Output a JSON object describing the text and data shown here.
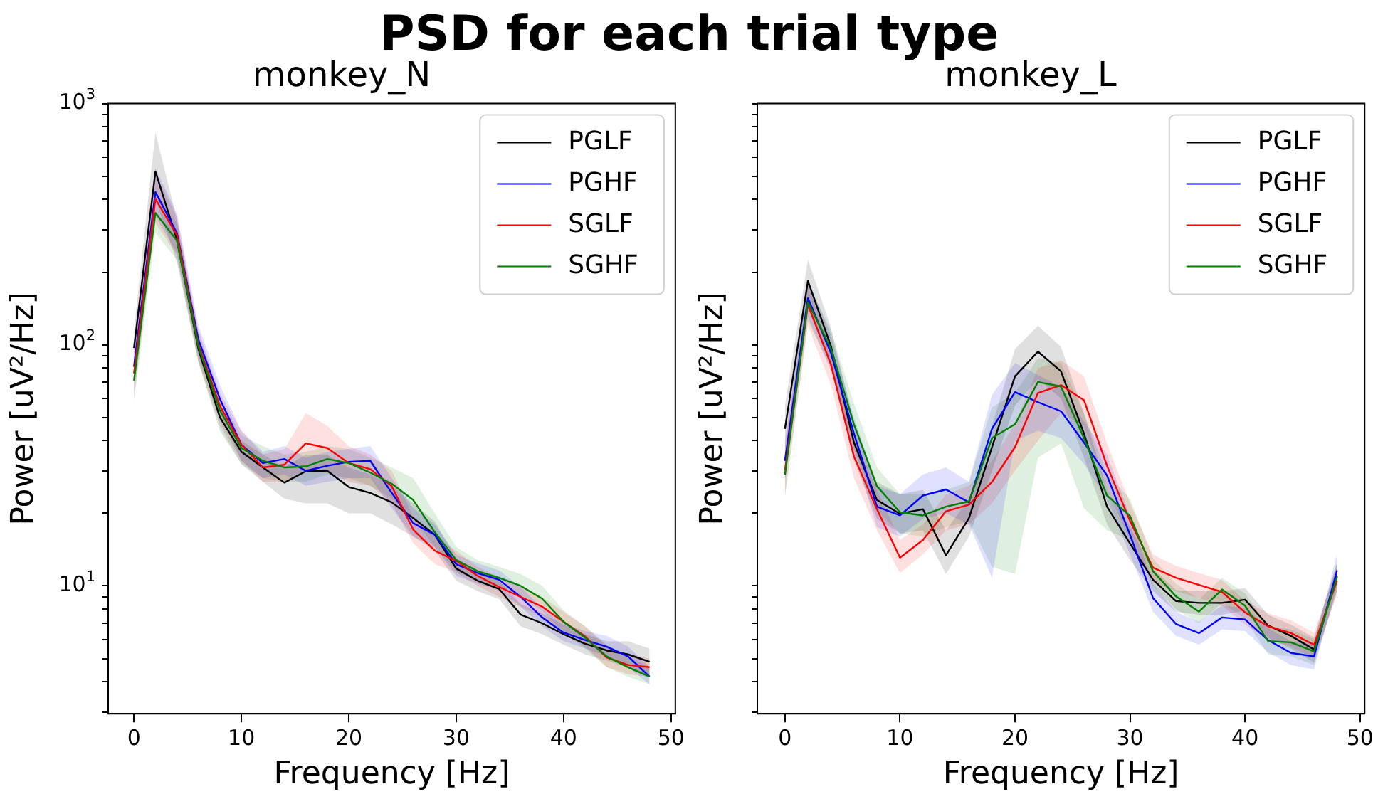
{
  "chart_data": [
    {
      "type": "line",
      "title": "monkey_N",
      "xlabel": "Frequency [Hz]",
      "ylabel": "Power [uV²/Hz]",
      "annotations": [
        "PSD for each trial type"
      ],
      "x": [
        0,
        2,
        4,
        6,
        8,
        10,
        12,
        14,
        16,
        18,
        20,
        22,
        24,
        26,
        28,
        30,
        32,
        34,
        36,
        38,
        40,
        42,
        44,
        46,
        48
      ],
      "xlim": [
        -2.4,
        50.4
      ],
      "xticks": [
        0,
        10,
        20,
        30,
        40,
        50
      ],
      "ylim": [
        2.95,
        1000
      ],
      "log": true,
      "yticks": [
        {
          "value": 3,
          "label": null
        },
        {
          "value": 4,
          "label": null
        },
        {
          "value": 5,
          "label": null
        },
        {
          "value": 6,
          "label": null
        },
        {
          "value": 7,
          "label": null
        },
        {
          "value": 8,
          "label": null
        },
        {
          "value": 9,
          "label": null
        },
        {
          "value": 10,
          "label": "10$^{1}$"
        },
        {
          "value": 20,
          "label": null
        },
        {
          "value": 30,
          "label": null
        },
        {
          "value": 40,
          "label": null
        },
        {
          "value": 50,
          "label": null
        },
        {
          "value": 60,
          "label": null
        },
        {
          "value": 70,
          "label": null
        },
        {
          "value": 80,
          "label": null
        },
        {
          "value": 90,
          "label": null
        },
        {
          "value": 100,
          "label": "10$^{2}$"
        },
        {
          "value": 200,
          "label": null
        },
        {
          "value": 300,
          "label": null
        },
        {
          "value": 400,
          "label": null
        },
        {
          "value": 500,
          "label": null
        },
        {
          "value": 600,
          "label": null
        },
        {
          "value": 700,
          "label": null
        },
        {
          "value": 800,
          "label": null
        },
        {
          "value": 900,
          "label": null
        },
        {
          "value": 1000,
          "label": "10$^{3}$"
        }
      ],
      "grid": false,
      "legend": "top right",
      "marker": "none",
      "line_style": "solid",
      "series": [
        {
          "name": "PGLF",
          "color": "#000000",
          "values": [
            97,
            523,
            272,
            96,
            50,
            36,
            31,
            26.8,
            29.9,
            30,
            25.7,
            24.3,
            22.2,
            19.1,
            16.3,
            11.8,
            10.5,
            9.7,
            7.6,
            7.0,
            6.3,
            5.75,
            5.4,
            5.2,
            4.85
          ],
          "lower": [
            80,
            400,
            220,
            85,
            44,
            32,
            27,
            23,
            22,
            22,
            20,
            20,
            18,
            16,
            14,
            10.5,
            9.5,
            8.8,
            6.8,
            6.3,
            5.7,
            5.2,
            4.9,
            4.6,
            4.2
          ],
          "upper": [
            115,
            760,
            330,
            108,
            56,
            40,
            35,
            31,
            35,
            35,
            31,
            29,
            26,
            22,
            18.5,
            13,
            11.5,
            10.5,
            8.4,
            7.7,
            6.9,
            6.3,
            5.9,
            5.9,
            5.5
          ]
        },
        {
          "name": "PGHF",
          "color": "#0000ff",
          "values": [
            81,
            430,
            290,
            105,
            59.6,
            38.5,
            32.3,
            33.6,
            30,
            31.5,
            32.7,
            33,
            24.3,
            18.2,
            16.3,
            12.3,
            11.3,
            10.6,
            9.0,
            7.4,
            6.4,
            5.96,
            5.6,
            5.1,
            4.2
          ],
          "lower": [
            62,
            340,
            240,
            90,
            52,
            33,
            28,
            29,
            26,
            27,
            28,
            28,
            21,
            16,
            14.5,
            11,
            10.2,
            9.6,
            8.2,
            6.8,
            5.9,
            5.5,
            5.1,
            4.6,
            3.9
          ],
          "upper": [
            100,
            540,
            350,
            120,
            68,
            44,
            36,
            38,
            34,
            36,
            37,
            38,
            28,
            21,
            18,
            13.5,
            12.4,
            11.6,
            9.9,
            8.1,
            7,
            6.5,
            6.2,
            5.6,
            4.6
          ]
        },
        {
          "name": "SGLF",
          "color": "#ff0000",
          "values": [
            76,
            402,
            285,
            100,
            55.8,
            38.5,
            31,
            31.8,
            39,
            37.3,
            32.3,
            30.5,
            25.9,
            17.1,
            14,
            12.7,
            11,
            9.9,
            9.0,
            8.2,
            7.1,
            6.17,
            5.05,
            4.7,
            4.6
          ],
          "lower": [
            60,
            320,
            235,
            86,
            48,
            33,
            27,
            27,
            30,
            30,
            27,
            26,
            22,
            15,
            12.3,
            11.4,
            10,
            9,
            8.2,
            7.4,
            6.5,
            5.6,
            4.6,
            4.3,
            4.2
          ],
          "upper": [
            92,
            510,
            340,
            115,
            63,
            44,
            35,
            37,
            52,
            46,
            38,
            35,
            30,
            19.5,
            16,
            14,
            12,
            10.9,
            9.9,
            9,
            7.8,
            6.8,
            5.6,
            5.2,
            5
          ]
        },
        {
          "name": "SGHF",
          "color": "#008000",
          "values": [
            71,
            352,
            270,
            98,
            53.4,
            37.3,
            33,
            31,
            31.3,
            33.6,
            32.3,
            29.5,
            26.5,
            22.7,
            16.7,
            12.8,
            11.5,
            10.8,
            10,
            8.85,
            7.1,
            6.1,
            5.1,
            4.6,
            4.2
          ],
          "lower": [
            58,
            290,
            225,
            84,
            46,
            32,
            28,
            27,
            27,
            29,
            28,
            26,
            23,
            19,
            14.5,
            11.5,
            10.4,
            9.8,
            9,
            7.9,
            6.4,
            5.5,
            4.6,
            4.2,
            3.9
          ],
          "upper": [
            86,
            430,
            320,
            113,
            61,
            42,
            38,
            35,
            36,
            38,
            37,
            34,
            31,
            28,
            20,
            14.5,
            12.8,
            12,
            11.2,
            10,
            7.9,
            6.8,
            5.7,
            5.1,
            4.6
          ]
        }
      ]
    },
    {
      "type": "line",
      "title": "monkey_L",
      "xlabel": "Frequency [Hz]",
      "ylabel": "Power [uV²/Hz]",
      "tick_labels": "x",
      "x": [
        0,
        2,
        4,
        6,
        8,
        10,
        12,
        14,
        16,
        18,
        20,
        22,
        24,
        26,
        28,
        30,
        32,
        34,
        36,
        38,
        40,
        42,
        44,
        46,
        48
      ],
      "xlim": [
        -2.4,
        50.4
      ],
      "xticks": [
        0,
        10,
        20,
        30,
        40,
        50
      ],
      "ylim": [
        2.95,
        1000
      ],
      "log": true,
      "yticks": [
        {
          "value": 3,
          "label": null
        },
        {
          "value": 4,
          "label": null
        },
        {
          "value": 5,
          "label": null
        },
        {
          "value": 6,
          "label": null
        },
        {
          "value": 7,
          "label": null
        },
        {
          "value": 8,
          "label": null
        },
        {
          "value": 9,
          "label": null
        },
        {
          "value": 10,
          "label": null
        },
        {
          "value": 20,
          "label": null
        },
        {
          "value": 30,
          "label": null
        },
        {
          "value": 40,
          "label": null
        },
        {
          "value": 50,
          "label": null
        },
        {
          "value": 60,
          "label": null
        },
        {
          "value": 70,
          "label": null
        },
        {
          "value": 80,
          "label": null
        },
        {
          "value": 90,
          "label": null
        },
        {
          "value": 100,
          "label": null
        },
        {
          "value": 200,
          "label": null
        },
        {
          "value": 300,
          "label": null
        },
        {
          "value": 400,
          "label": null
        },
        {
          "value": 500,
          "label": null
        },
        {
          "value": 600,
          "label": null
        },
        {
          "value": 700,
          "label": null
        },
        {
          "value": 800,
          "label": null
        },
        {
          "value": 900,
          "label": null
        },
        {
          "value": 1000,
          "label": null
        }
      ],
      "grid": false,
      "legend": "top right",
      "marker": "none",
      "line_style": "solid",
      "series": [
        {
          "name": "PGLF",
          "color": "#000000",
          "values": [
            44.8,
            184,
            98.6,
            39.3,
            22.7,
            19.9,
            20.8,
            13.4,
            19.1,
            37.6,
            74,
            93.6,
            77.6,
            42.8,
            21.3,
            15,
            10.6,
            8.65,
            8.5,
            8.5,
            8.77,
            6.85,
            6.2,
            5.45,
            11.0
          ],
          "lower": [
            36,
            150,
            82,
            33,
            19,
            16.5,
            17,
            11.2,
            16,
            30,
            56,
            72,
            60,
            34,
            18,
            12.8,
            9.5,
            7.8,
            7.6,
            7.6,
            7.9,
            6.1,
            5.5,
            4.8,
            9.5
          ],
          "upper": [
            56,
            225,
            118,
            47,
            27,
            24,
            25,
            17,
            23,
            46,
            96,
            120,
            98,
            52,
            25,
            17.5,
            11.8,
            9.6,
            9.5,
            9.5,
            9.8,
            7.6,
            6.9,
            6.1,
            12.5
          ]
        },
        {
          "name": "PGHF",
          "color": "#0000ff",
          "values": [
            33,
            156,
            92.5,
            42.8,
            21.3,
            19.6,
            23.7,
            25.1,
            22.2,
            44.8,
            63.6,
            57.8,
            53,
            39.3,
            28.7,
            16.3,
            8.9,
            6.95,
            6.37,
            7.4,
            7.26,
            5.96,
            5.27,
            5.1,
            11.6
          ],
          "lower": [
            27,
            130,
            78,
            36,
            17.5,
            16,
            19,
            20,
            18,
            10.8,
            40,
            44,
            41,
            32,
            23,
            13.5,
            7.8,
            6.2,
            5.7,
            6.6,
            6.5,
            5.3,
            4.7,
            4.5,
            10
          ],
          "upper": [
            40,
            185,
            110,
            50,
            26,
            24,
            29,
            31,
            27,
            62,
            84,
            75,
            67,
            48,
            35,
            19.5,
            10.2,
            7.8,
            7.1,
            8.3,
            8.1,
            6.7,
            5.9,
            5.8,
            13.5
          ]
        },
        {
          "name": "SGLF",
          "color": "#ff0000",
          "values": [
            30.2,
            146.6,
            82.8,
            34.4,
            20.8,
            13.1,
            15.5,
            20.4,
            21.7,
            27,
            37.6,
            63.1,
            68,
            58.9,
            31.5,
            18.6,
            11.9,
            10.8,
            10.1,
            9.44,
            7.76,
            6.8,
            6.37,
            5.7,
            10.5
          ],
          "lower": [
            24,
            120,
            68,
            28,
            17,
            11.3,
            13.5,
            17,
            18,
            22,
            30,
            40,
            52,
            46,
            25,
            15.5,
            10.3,
            9.5,
            8.9,
            8.3,
            6.9,
            6,
            5.6,
            5,
            9.2
          ],
          "upper": [
            38,
            175,
            100,
            42,
            25,
            15.5,
            18,
            24,
            26,
            33,
            47,
            80,
            86,
            74,
            39,
            22,
            13.5,
            12.1,
            11.3,
            10.6,
            8.7,
            7.7,
            7.2,
            6.4,
            12
          ]
        },
        {
          "name": "SGHF",
          "color": "#008000",
          "values": [
            28.9,
            150,
            96.6,
            46.8,
            25.9,
            20.2,
            19.6,
            21.3,
            22.4,
            41,
            46.8,
            70.1,
            67.1,
            41,
            23.7,
            19.5,
            11.5,
            9.04,
            7.82,
            9.66,
            8.28,
            5.9,
            5.83,
            5.35,
            10.9
          ],
          "lower": [
            23,
            125,
            80,
            37,
            20.5,
            16.5,
            16,
            17.5,
            18.5,
            12,
            11.2,
            34,
            39,
            21,
            17,
            15.5,
            10,
            8,
            7,
            8.5,
            7.3,
            5.2,
            5.1,
            4.7,
            9.5
          ],
          "upper": [
            36,
            180,
            115,
            57,
            31,
            24,
            24,
            25,
            27,
            55,
            63,
            88,
            84,
            52,
            29,
            23,
            13,
            10.2,
            8.8,
            10.8,
            9.3,
            6.8,
            6.6,
            6,
            12.5
          ]
        }
      ]
    }
  ]
}
